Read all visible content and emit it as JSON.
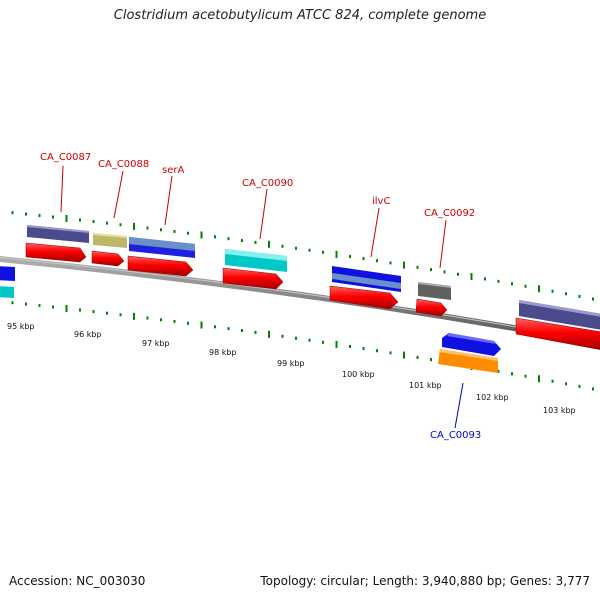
{
  "map_title": "Clostridium acetobutylicum ATCC 824, complete genome",
  "accession": "Accession: NC_003030",
  "topology": "Topology: circular; Length: 3,940,880 bp; Genes: 3,777",
  "colors": {
    "backbone": "#808080",
    "ticks": "#008000",
    "gene_label_plus": "#cc0000",
    "gene_label_minus": "#0000cc",
    "cds": "#ff0000"
  },
  "position_labels": [
    "95 kbp",
    "96 kbp",
    "97 kbp",
    "98 kbp",
    "99 kbp",
    "100 kbp",
    "101 kbp",
    "102 kbp",
    "103 kbp"
  ],
  "gene_labels": [
    {
      "text": "CA_C0087",
      "strand": "+"
    },
    {
      "text": "CA_C0088",
      "strand": "+"
    },
    {
      "text": "serA",
      "strand": "+"
    },
    {
      "text": "CA_C0090",
      "strand": "+"
    },
    {
      "text": "ilvC",
      "strand": "+"
    },
    {
      "text": "CA_C0092",
      "strand": "+"
    },
    {
      "text": "CA_C0093",
      "strand": "-"
    }
  ],
  "features": [
    {
      "strand": "+",
      "color": "#4a4a8c"
    },
    {
      "strand": "+",
      "color": "#bdb76b"
    },
    {
      "strand": "+",
      "color": "#2020e0"
    },
    {
      "strand": "+",
      "color": "#00c8c8"
    },
    {
      "strand": "+",
      "color": "#1010e0"
    },
    {
      "strand": "+",
      "color": "#606060"
    },
    {
      "strand": "+",
      "color": "#4a4a8c"
    },
    {
      "strand": "-",
      "color": "#1010e0"
    },
    {
      "strand": "-",
      "color": "#ff8c00"
    }
  ]
}
